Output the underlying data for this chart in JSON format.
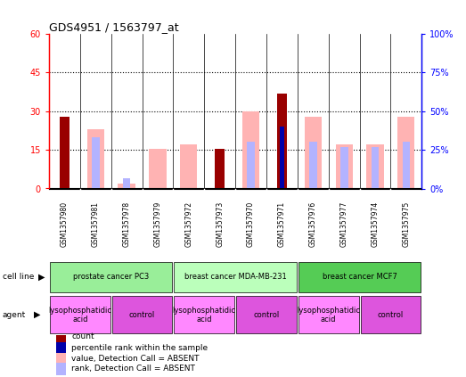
{
  "title": "GDS4951 / 1563797_at",
  "samples": [
    "GSM1357980",
    "GSM1357981",
    "GSM1357978",
    "GSM1357979",
    "GSM1357972",
    "GSM1357973",
    "GSM1357970",
    "GSM1357971",
    "GSM1357976",
    "GSM1357977",
    "GSM1357974",
    "GSM1357975"
  ],
  "count_values": [
    28,
    0,
    0,
    0,
    0,
    15.5,
    0,
    37,
    0,
    0,
    0,
    0
  ],
  "percentile_values": [
    0,
    0,
    0,
    0,
    0,
    0,
    0,
    24,
    0,
    0,
    0,
    0
  ],
  "absent_value_bars": [
    0,
    23,
    2,
    15.5,
    17,
    0,
    30,
    0,
    28,
    17,
    17,
    28
  ],
  "absent_rank_bars": [
    17,
    20,
    4,
    0,
    0,
    15.5,
    18,
    0,
    18,
    16,
    16,
    18
  ],
  "count_color": "#990000",
  "percentile_color": "#0000aa",
  "absent_value_color": "#ffb3b3",
  "absent_rank_color": "#b3b3ff",
  "ylim_left": [
    0,
    60
  ],
  "ylim_right": [
    0,
    100
  ],
  "yticks_left": [
    0,
    15,
    30,
    45,
    60
  ],
  "yticks_right": [
    0,
    25,
    50,
    75,
    100
  ],
  "ytick_labels_left": [
    "0",
    "15",
    "30",
    "45",
    "60"
  ],
  "ytick_labels_right": [
    "0%",
    "25%",
    "50%",
    "75%",
    "100%"
  ],
  "cell_line_groups": [
    {
      "label": "prostate cancer PC3",
      "start": 0,
      "end": 4,
      "color": "#99ee99"
    },
    {
      "label": "breast cancer MDA-MB-231",
      "start": 4,
      "end": 8,
      "color": "#bbffbb"
    },
    {
      "label": "breast cancer MCF7",
      "start": 8,
      "end": 12,
      "color": "#55cc55"
    }
  ],
  "agent_groups": [
    {
      "label": "lysophosphatidic\nacid",
      "start": 0,
      "end": 2,
      "color": "#ff88ff"
    },
    {
      "label": "control",
      "start": 2,
      "end": 4,
      "color": "#dd55dd"
    },
    {
      "label": "lysophosphatidic\nacid",
      "start": 4,
      "end": 6,
      "color": "#ff88ff"
    },
    {
      "label": "control",
      "start": 6,
      "end": 8,
      "color": "#dd55dd"
    },
    {
      "label": "lysophosphatidic\nacid",
      "start": 8,
      "end": 10,
      "color": "#ff88ff"
    },
    {
      "label": "control",
      "start": 10,
      "end": 12,
      "color": "#dd55dd"
    }
  ],
  "legend_items": [
    {
      "label": "count",
      "color": "#990000"
    },
    {
      "label": "percentile rank within the sample",
      "color": "#0000aa"
    },
    {
      "label": "value, Detection Call = ABSENT",
      "color": "#ffb3b3"
    },
    {
      "label": "rank, Detection Call = ABSENT",
      "color": "#b3b3ff"
    }
  ],
  "background_color": "#ffffff",
  "plot_bg_color": "#ffffff"
}
